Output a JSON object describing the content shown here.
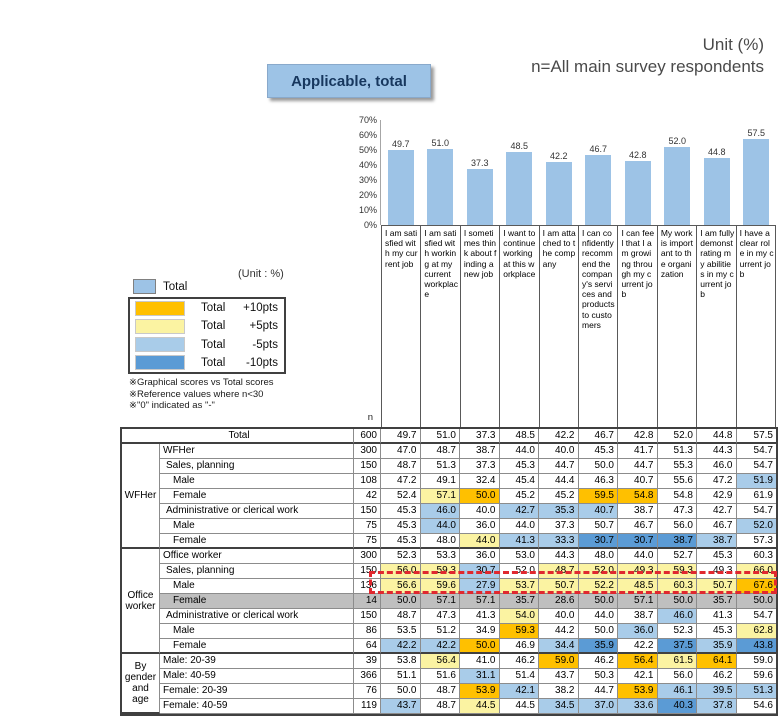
{
  "page": {
    "unit_label": "Unit (%)",
    "respondents_label": "n=All main survey respondents",
    "applicable_button": "Applicable, total",
    "unit_small_label": "(Unit : %)",
    "n_column_header": "n"
  },
  "colors": {
    "bar": "#9DC3E6",
    "plus10": "#FFC000",
    "plus5": "#FBF3A2",
    "minus5": "#A9CCE9",
    "minus10": "#5B9BD5",
    "reference_grey": "#BFBFBF",
    "red_box": "#E0282F",
    "button_bg": "#9DC3E6"
  },
  "chart_data": {
    "type": "bar",
    "title": "Applicable, total",
    "categories": [
      "I am satisfied with my current job",
      "I am satisfied with working at my current workplace",
      "I sometimes think about finding a new job",
      "I want to continue working at this workplace",
      "I am attached to the company",
      "I can confidently recommend the company's services and products to customers",
      "I can feel that I am growing through my current job",
      "My work is important to the organization",
      "I am fully demonstrating my abilities in my current job",
      "I have a clear role in my current job"
    ],
    "values": [
      49.7,
      51.0,
      37.3,
      48.5,
      42.2,
      46.7,
      42.8,
      52.0,
      44.8,
      57.5
    ],
    "ylim": [
      0,
      70
    ],
    "yticks": [
      "0%",
      "10%",
      "20%",
      "30%",
      "40%",
      "50%",
      "60%",
      "70%"
    ],
    "grid": false,
    "value_labels": true
  },
  "legend": {
    "base": {
      "label": "Total"
    },
    "entries": [
      {
        "label": "Total",
        "value": "+10pts",
        "threshold": 10,
        "color_key": "plus10"
      },
      {
        "label": "Total",
        "value": "+5pts",
        "threshold": 5,
        "color_key": "plus5"
      },
      {
        "label": "Total",
        "value": "-5pts",
        "threshold": -5,
        "color_key": "minus5"
      },
      {
        "label": "Total",
        "value": "-10pts",
        "threshold": -10,
        "color_key": "minus10"
      }
    ],
    "notes": [
      "※Graphical scores vs Total scores",
      "※Reference values where n<30",
      "※\"0\" indicated as \"-\""
    ]
  },
  "table": {
    "rows": [
      {
        "label": "Total",
        "n": 600,
        "indent": 0,
        "total_row": true,
        "section_end": true,
        "values": [
          49.7,
          51.0,
          37.3,
          48.5,
          42.2,
          46.7,
          42.8,
          52.0,
          44.8,
          57.5
        ]
      },
      {
        "group": {
          "label": "WFHer",
          "span": 7
        },
        "label": "WFHer",
        "n": 300,
        "indent": 0,
        "values": [
          47.0,
          48.7,
          38.7,
          44.0,
          40.0,
          45.3,
          41.7,
          51.3,
          44.3,
          54.7
        ]
      },
      {
        "label": "Sales, planning",
        "n": 150,
        "indent": 1,
        "values": [
          48.7,
          51.3,
          37.3,
          45.3,
          44.7,
          50.0,
          44.7,
          55.3,
          46.0,
          54.7
        ]
      },
      {
        "label": "Male",
        "n": 108,
        "indent": 2,
        "values": [
          47.2,
          49.1,
          32.4,
          45.4,
          44.4,
          46.3,
          40.7,
          55.6,
          47.2,
          51.9
        ]
      },
      {
        "label": "Female",
        "n": 42,
        "indent": 2,
        "values": [
          52.4,
          57.1,
          50.0,
          45.2,
          45.2,
          59.5,
          54.8,
          54.8,
          42.9,
          61.9
        ]
      },
      {
        "label": "Administrative or clerical work",
        "n": 150,
        "indent": 1,
        "values": [
          45.3,
          46.0,
          40.0,
          42.7,
          35.3,
          40.7,
          38.7,
          47.3,
          42.7,
          54.7
        ]
      },
      {
        "label": "Male",
        "n": 75,
        "indent": 2,
        "values": [
          45.3,
          44.0,
          36.0,
          44.0,
          37.3,
          50.7,
          46.7,
          56.0,
          46.7,
          52.0
        ]
      },
      {
        "label": "Female",
        "n": 75,
        "indent": 2,
        "section_end": true,
        "values": [
          45.3,
          48.0,
          44.0,
          41.3,
          33.3,
          30.7,
          30.7,
          38.7,
          38.7,
          57.3
        ]
      },
      {
        "group": {
          "label": "Office worker",
          "span": 7
        },
        "label": "Office worker",
        "n": 300,
        "indent": 0,
        "values": [
          52.3,
          53.3,
          36.0,
          53.0,
          44.3,
          48.0,
          44.0,
          52.7,
          45.3,
          60.3
        ]
      },
      {
        "label": "Sales, planning",
        "n": 150,
        "indent": 1,
        "values": [
          56.0,
          59.3,
          30.7,
          52.0,
          48.7,
          52.0,
          49.3,
          59.3,
          49.3,
          66.0
        ]
      },
      {
        "label": "Male",
        "n": 136,
        "indent": 2,
        "highlight_box": true,
        "values": [
          56.6,
          59.6,
          27.9,
          53.7,
          50.7,
          52.2,
          48.5,
          60.3,
          50.7,
          67.6
        ]
      },
      {
        "label": "Female",
        "n": 14,
        "indent": 2,
        "reference": true,
        "values": [
          50.0,
          57.1,
          57.1,
          35.7,
          28.6,
          50.0,
          57.1,
          50.0,
          35.7,
          50.0
        ]
      },
      {
        "label": "Administrative or clerical work",
        "n": 150,
        "indent": 1,
        "values": [
          48.7,
          47.3,
          41.3,
          54.0,
          40.0,
          44.0,
          38.7,
          46.0,
          41.3,
          54.7
        ]
      },
      {
        "label": "Male",
        "n": 86,
        "indent": 2,
        "values": [
          53.5,
          51.2,
          34.9,
          59.3,
          44.2,
          50.0,
          36.0,
          52.3,
          45.3,
          62.8
        ]
      },
      {
        "label": "Female",
        "n": 64,
        "indent": 2,
        "section_end": true,
        "values": [
          42.2,
          42.2,
          50.0,
          46.9,
          34.4,
          35.9,
          42.2,
          37.5,
          35.9,
          43.8
        ]
      },
      {
        "group": {
          "label": "By gender and age",
          "span": 4
        },
        "label": "Male: 20-39",
        "n": 39,
        "indent": 0,
        "values": [
          53.8,
          56.4,
          41.0,
          46.2,
          59.0,
          46.2,
          56.4,
          61.5,
          64.1,
          59.0
        ]
      },
      {
        "label": "Male: 40-59",
        "n": 366,
        "indent": 0,
        "values": [
          51.1,
          51.6,
          31.1,
          51.4,
          43.7,
          50.3,
          42.1,
          56.0,
          46.2,
          59.6
        ]
      },
      {
        "label": "Female: 20-39",
        "n": 76,
        "indent": 0,
        "values": [
          50.0,
          48.7,
          53.9,
          42.1,
          38.2,
          44.7,
          53.9,
          46.1,
          39.5,
          51.3
        ]
      },
      {
        "label": "Female: 40-59",
        "n": 119,
        "indent": 0,
        "values": [
          43.7,
          48.7,
          44.5,
          44.5,
          34.5,
          37.0,
          33.6,
          40.3,
          37.8,
          54.6
        ]
      }
    ]
  }
}
